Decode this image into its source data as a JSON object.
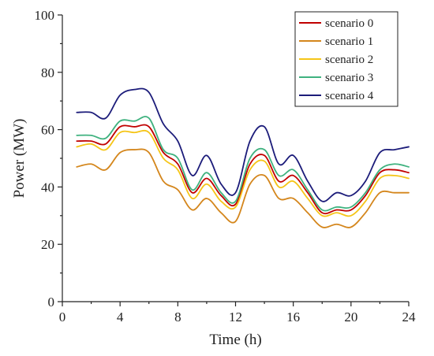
{
  "chart_data": {
    "type": "line",
    "title": "",
    "xlabel": "Time (h)",
    "ylabel": "Power (MW)",
    "xlim": [
      0,
      24
    ],
    "ylim": [
      0,
      100
    ],
    "xticks": [
      0,
      4,
      8,
      12,
      16,
      20,
      24
    ],
    "yticks": [
      0,
      20,
      40,
      60,
      80,
      100
    ],
    "grid": false,
    "legend_position": "top-right",
    "x": [
      1,
      2,
      3,
      4,
      5,
      6,
      7,
      8,
      9,
      10,
      11,
      12,
      13,
      14,
      15,
      16,
      17,
      18,
      19,
      20,
      21,
      22,
      23,
      24
    ],
    "series": [
      {
        "name": "scenario 0",
        "color": "#c00000",
        "values": [
          56,
          56,
          55,
          61,
          61,
          61,
          52,
          48,
          38,
          43,
          37,
          34,
          48,
          51,
          42,
          44,
          38,
          31,
          32,
          32,
          37,
          45,
          46,
          45
        ]
      },
      {
        "name": "scenario 1",
        "color": "#d4861c",
        "values": [
          47,
          48,
          46,
          52,
          53,
          52,
          42,
          39,
          32,
          36,
          31,
          28,
          41,
          44,
          36,
          36,
          31,
          26,
          27,
          26,
          31,
          38,
          38,
          38
        ]
      },
      {
        "name": "scenario 2",
        "color": "#f5c518",
        "values": [
          54,
          55,
          53,
          59,
          59,
          59,
          50,
          46,
          36,
          41,
          35,
          33,
          46,
          49,
          40,
          42,
          36,
          30,
          31,
          30,
          35,
          43,
          44,
          43
        ]
      },
      {
        "name": "scenario 3",
        "color": "#3fb27f",
        "values": [
          58,
          58,
          57,
          63,
          63,
          64,
          53,
          50,
          39,
          45,
          38,
          35,
          50,
          53,
          44,
          46,
          39,
          32,
          33,
          33,
          38,
          46,
          48,
          47
        ]
      },
      {
        "name": "scenario 4",
        "color": "#1c1c7a",
        "values": [
          66,
          66,
          64,
          72,
          74,
          73,
          62,
          56,
          44,
          51,
          41,
          38,
          56,
          61,
          48,
          51,
          42,
          35,
          38,
          37,
          42,
          52,
          53,
          54
        ]
      }
    ]
  }
}
